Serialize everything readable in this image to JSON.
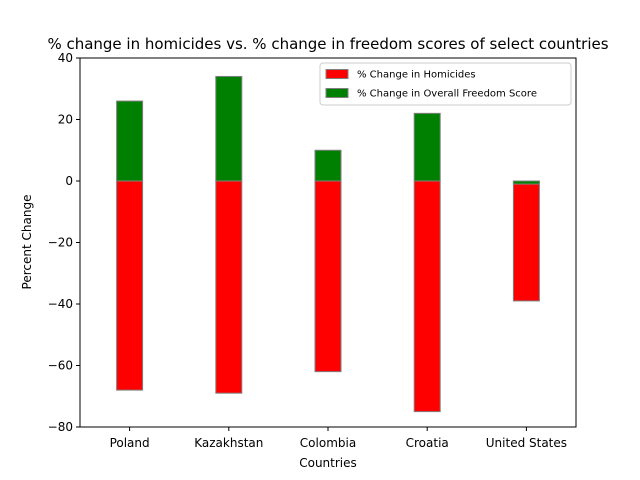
{
  "chart_data": {
    "type": "bar",
    "stacked": true,
    "title": "% change in homicides vs. % change in freedom scores of select countries",
    "xlabel": "Countries",
    "ylabel": "Percent Change",
    "categories": [
      "Poland",
      "Kazakhstan",
      "Colombia",
      "Croatia",
      "United States"
    ],
    "series": [
      {
        "name": "% Change in Homicides",
        "color": "#ff0000",
        "values": [
          -68,
          -69,
          -62,
          -75,
          -39
        ]
      },
      {
        "name": "% Change in Overall Freedom Score",
        "color": "#008000",
        "values": [
          26,
          34,
          10,
          22,
          -1
        ]
      }
    ],
    "ylim": [
      -80,
      40
    ],
    "yticks": [
      -80,
      -60,
      -40,
      -20,
      0,
      20,
      40
    ],
    "ytick_labels": [
      "−80",
      "−60",
      "−40",
      "−20",
      "0",
      "20",
      "40"
    ],
    "grid": false,
    "legend_position": "top-right"
  }
}
